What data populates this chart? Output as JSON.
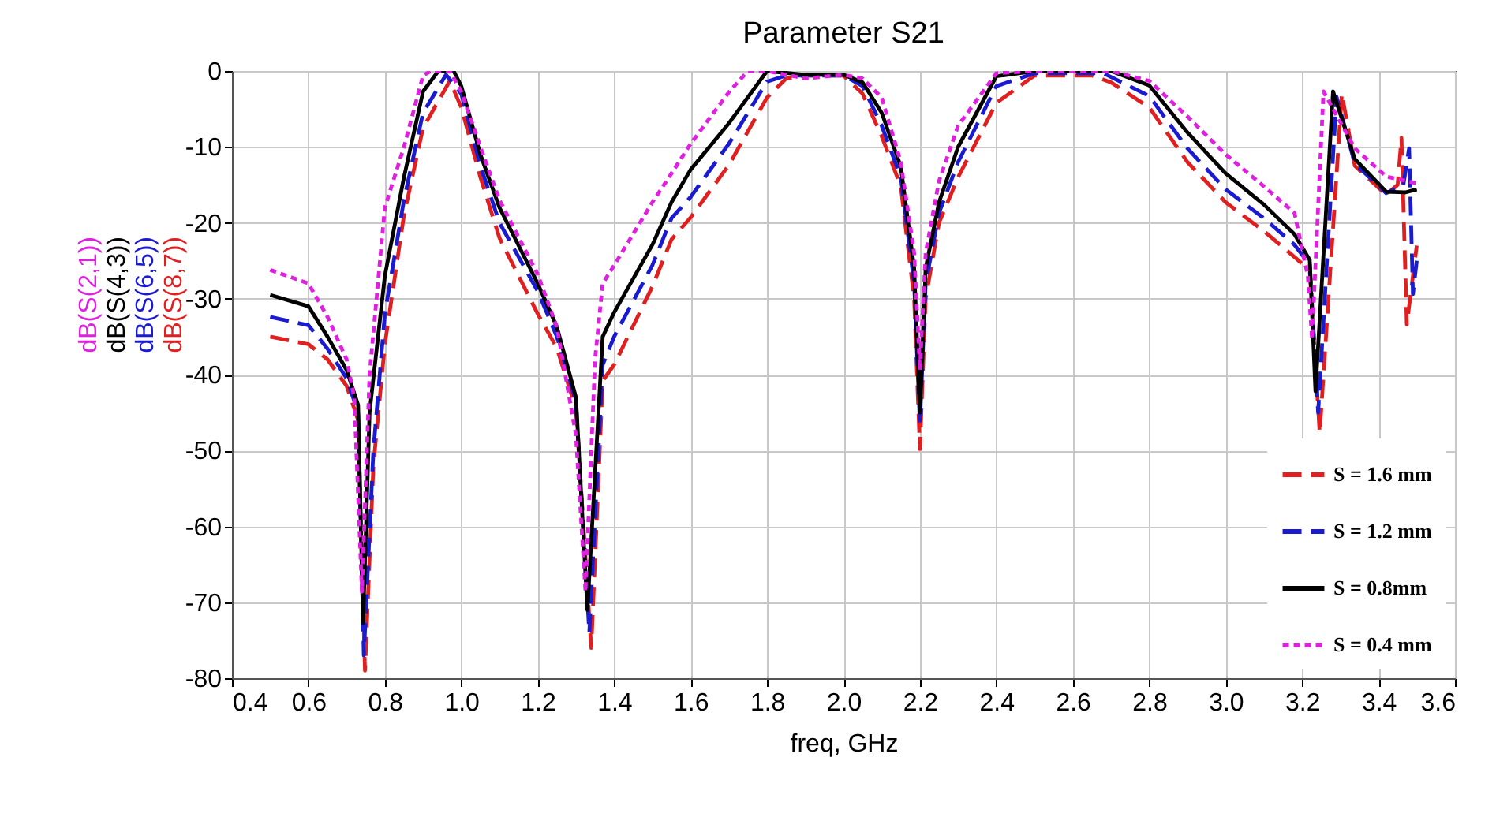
{
  "chart_data": {
    "type": "line",
    "title": "Parameter S21",
    "xlabel": "freq, GHz",
    "annotations": [
      "dB(S(2,1))",
      "dB(S(4,3))",
      "dB(S(6,5))",
      "dB(S(8,7))"
    ],
    "xlim": [
      0.4,
      3.6
    ],
    "xticks": [
      0.4,
      0.6,
      0.8,
      {
        "value": 1,
        "label": "1.0"
      },
      1.2,
      1.4,
      1.6,
      1.8,
      {
        "value": 2,
        "label": "2.0"
      },
      2.2,
      2.4,
      2.6,
      2.8,
      {
        "value": 3,
        "label": "3.0"
      },
      3.2,
      3.4,
      3.6
    ],
    "ylim": [
      -80,
      0
    ],
    "yticks": [
      -80,
      -70,
      -60,
      -50,
      -40,
      -30,
      -20,
      -10,
      0
    ],
    "grid": true,
    "legend": "bottom right",
    "marker": "none",
    "series": [
      {
        "name": "S = 1.6 mm",
        "color": "#e02020",
        "line_style": "dashed",
        "x": [
          0.5,
          0.6,
          0.65,
          0.7,
          0.73,
          0.748,
          0.77,
          0.8,
          0.85,
          0.9,
          0.97,
          1.0,
          1.05,
          1.1,
          1.2,
          1.25,
          1.3,
          1.34,
          1.37,
          1.4,
          1.5,
          1.55,
          1.6,
          1.7,
          1.8,
          1.85,
          1.9,
          2.0,
          2.05,
          2.1,
          2.15,
          2.185,
          2.2,
          2.215,
          2.25,
          2.3,
          2.4,
          2.5,
          2.65,
          2.7,
          2.8,
          2.9,
          3.0,
          3.1,
          3.18,
          3.22,
          3.246,
          3.304,
          3.338,
          3.42,
          3.45,
          3.46,
          3.474,
          3.5
        ],
        "values": [
          -35,
          -36,
          -38,
          -41.5,
          -46,
          -79,
          -52,
          -36,
          -19,
          -7.5,
          -1.3,
          -4.8,
          -14,
          -22,
          -32,
          -36.5,
          -44.5,
          -76,
          -40.8,
          -38.7,
          -28.4,
          -22.2,
          -19.3,
          -12.4,
          -3.5,
          -1,
          -0.6,
          -0.6,
          -3,
          -8.6,
          -15.2,
          -30,
          -49.8,
          -30,
          -20,
          -14,
          -4.2,
          -0.6,
          -0.6,
          -1.5,
          -4.8,
          -12,
          -17.3,
          -21.1,
          -24.5,
          -26.3,
          -47.7,
          -3,
          -12.5,
          -16.3,
          -15,
          -8.8,
          -33.4,
          -23
        ]
      },
      {
        "name": "S = 1.2 mm",
        "color": "#1a1ad0",
        "line_style": "dashed",
        "x": [
          0.5,
          0.6,
          0.65,
          0.7,
          0.73,
          0.745,
          0.77,
          0.8,
          0.85,
          0.9,
          0.96,
          1.0,
          1.05,
          1.1,
          1.2,
          1.25,
          1.3,
          1.335,
          1.37,
          1.4,
          1.5,
          1.55,
          1.6,
          1.7,
          1.8,
          1.85,
          1.9,
          2.0,
          2.05,
          2.1,
          2.15,
          2.185,
          2.2,
          2.215,
          2.25,
          2.3,
          2.4,
          2.5,
          2.68,
          2.7,
          2.8,
          2.9,
          3.0,
          3.1,
          3.18,
          3.22,
          3.242,
          3.29,
          3.338,
          3.42,
          3.465,
          3.48,
          3.49,
          3.5
        ],
        "values": [
          -32.4,
          -33.5,
          -36.6,
          -40.5,
          -45,
          -77,
          -50,
          -32,
          -17,
          -5.5,
          -0.5,
          -3,
          -12.5,
          -20,
          -29,
          -35,
          -43.5,
          -74,
          -38.7,
          -35,
          -25.6,
          -19.4,
          -16.6,
          -9.6,
          -1.4,
          -0.6,
          -0.6,
          -0.6,
          -2,
          -7.2,
          -14,
          -28,
          -46.5,
          -28,
          -18.7,
          -12,
          -2,
          -0.3,
          -0.3,
          -0.8,
          -3.3,
          -10.2,
          -15.6,
          -19.4,
          -22.9,
          -25.5,
          -45,
          -3.4,
          -12.2,
          -16.1,
          -15,
          -10.2,
          -29.4,
          -25
        ]
      },
      {
        "name": "S = 0.8mm",
        "color": "#000000",
        "line_style": "solid",
        "x": [
          0.5,
          0.6,
          0.65,
          0.7,
          0.73,
          0.743,
          0.76,
          0.8,
          0.85,
          0.9,
          0.94,
          0.98,
          1.0,
          1.05,
          1.1,
          1.2,
          1.25,
          1.3,
          1.33,
          1.37,
          1.4,
          1.5,
          1.55,
          1.6,
          1.7,
          1.8,
          1.9,
          2.0,
          2.05,
          2.1,
          2.15,
          2.185,
          2.2,
          2.215,
          2.25,
          2.3,
          2.4,
          2.5,
          2.7,
          2.8,
          2.9,
          3.0,
          3.1,
          3.18,
          3.22,
          3.235,
          3.281,
          3.338,
          3.42,
          3.47,
          3.5
        ],
        "values": [
          -29.5,
          -31,
          -35,
          -39.4,
          -44,
          -72.7,
          -45,
          -27,
          -14,
          -2.7,
          0,
          0,
          -2,
          -11,
          -18,
          -28,
          -33.7,
          -43,
          -71,
          -35,
          -31.8,
          -22.9,
          -17.3,
          -13,
          -6.9,
          0,
          -0.5,
          -0.5,
          -1.5,
          -5.5,
          -12.6,
          -26,
          -45,
          -26,
          -17.3,
          -10,
          -0.7,
          0,
          0,
          -1.9,
          -8.1,
          -13.5,
          -17.6,
          -21.5,
          -24.9,
          -42.2,
          -2.7,
          -11.6,
          -15.9,
          -16,
          -15.6
        ]
      },
      {
        "name": "S = 0.4 mm",
        "color": "#e020e0",
        "line_style": "dotted",
        "x": [
          0.5,
          0.6,
          0.65,
          0.7,
          0.72,
          0.74,
          0.76,
          0.8,
          0.85,
          0.9,
          0.92,
          0.97,
          1.0,
          1.05,
          1.1,
          1.2,
          1.25,
          1.3,
          1.325,
          1.35,
          1.37,
          1.4,
          1.5,
          1.55,
          1.6,
          1.7,
          1.75,
          1.8,
          1.9,
          2.0,
          2.05,
          2.1,
          2.15,
          2.185,
          2.2,
          2.215,
          2.25,
          2.3,
          2.4,
          2.5,
          2.7,
          2.8,
          2.9,
          3.0,
          3.1,
          3.18,
          3.215,
          3.226,
          3.256,
          3.338,
          3.42,
          3.5
        ],
        "values": [
          -26.2,
          -28,
          -32.4,
          -38,
          -43,
          -68.6,
          -40,
          -18,
          -10,
          -0.6,
          0,
          0,
          -2.7,
          -10,
          -17,
          -26.8,
          -33.7,
          -48,
          -68.6,
          -38,
          -28,
          -25.6,
          -17.3,
          -13.5,
          -9.6,
          -2.8,
          0,
          0,
          -1,
          -0.5,
          -1,
          -3.5,
          -12,
          -24,
          -39.4,
          -24,
          -14.5,
          -7.2,
          -0.3,
          0,
          0,
          -1.3,
          -6,
          -11,
          -15.2,
          -18.7,
          -27,
          -35.3,
          -2.7,
          -10.2,
          -13.9,
          -14.8
        ]
      }
    ]
  }
}
